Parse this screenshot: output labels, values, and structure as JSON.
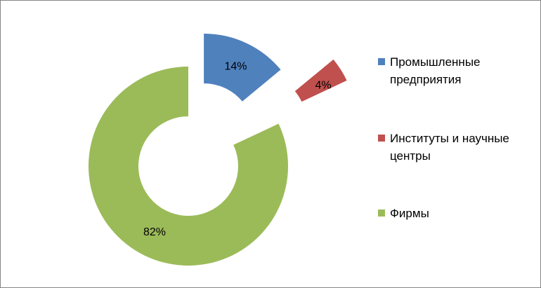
{
  "chart_data": {
    "type": "pie",
    "variant": "doughnut-exploded",
    "categories": [
      "Промышленные предприятия",
      "Институты и научные центры",
      "Фирмы"
    ],
    "values": [
      14,
      4,
      82
    ],
    "labels": [
      "14%",
      "4%",
      "82%"
    ],
    "colors": [
      "#4F81BD",
      "#C0504D",
      "#9BBB59"
    ],
    "legend_position": "right"
  },
  "legend": [
    {
      "label": "Промышленные предприятия",
      "color": "#4F81BD"
    },
    {
      "label": " Институты и научные центры",
      "color": "#C0504D"
    },
    {
      "label": "Фирмы",
      "color": "#9BBB59"
    }
  ]
}
